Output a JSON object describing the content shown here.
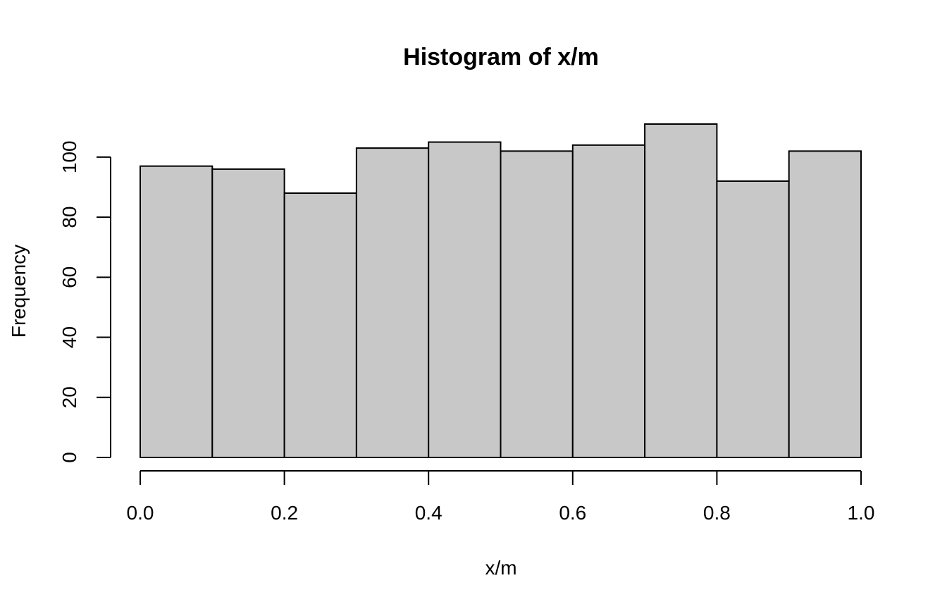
{
  "chart_data": {
    "type": "histogram",
    "title": "Histogram of x/m",
    "xlabel": "x/m",
    "ylabel": "Frequency",
    "bin_edges": [
      0.0,
      0.1,
      0.2,
      0.3,
      0.4,
      0.5,
      0.6,
      0.7,
      0.8,
      0.9,
      1.0
    ],
    "values": [
      97,
      96,
      88,
      103,
      105,
      102,
      104,
      111,
      92,
      102
    ],
    "xlim": [
      0.0,
      1.0
    ],
    "ylim": [
      0,
      111
    ],
    "x_ticks": [
      0.0,
      0.2,
      0.4,
      0.6,
      0.8,
      1.0
    ],
    "x_tick_labels": [
      "0.0",
      "0.2",
      "0.4",
      "0.6",
      "0.8",
      "1.0"
    ],
    "y_ticks": [
      0,
      20,
      40,
      60,
      80,
      100
    ],
    "y_tick_labels": [
      "0",
      "20",
      "40",
      "60",
      "80",
      "100"
    ],
    "bar_color": "#c8c8c8",
    "grid": false
  }
}
